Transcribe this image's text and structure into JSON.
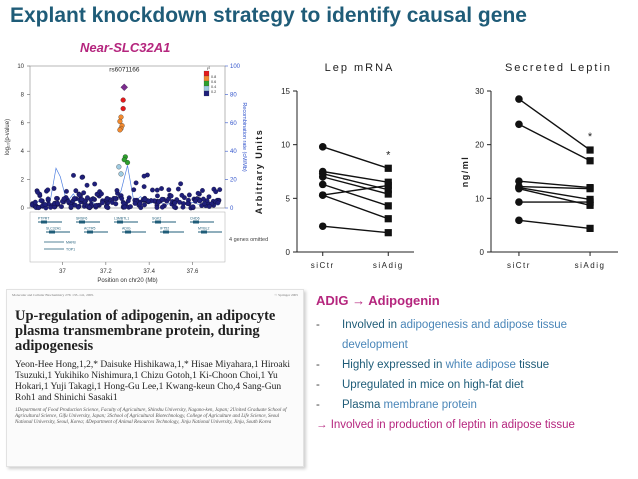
{
  "slide": {
    "title": "Explant knockdown strategy to identify causal gene",
    "subtitle": "Near-SLC32A1"
  },
  "chart_data": [
    {
      "type": "scatter",
      "ylabel": "log₁₀(p-value)",
      "y2label": "Recombination rate (cM/Mb)",
      "xlabel": "Position on chr20 (Mb)",
      "xlim": [
        36.85,
        37.75
      ],
      "ylim": [
        0,
        10
      ],
      "y2lim": [
        0,
        100
      ],
      "x_ticks": [
        "37",
        "37.2",
        "37.4",
        "37.6"
      ],
      "y_ticks": [
        "0",
        "2",
        "4",
        "6",
        "8",
        "10"
      ],
      "y2_ticks": [
        "0",
        "20",
        "40",
        "60",
        "80",
        "100"
      ],
      "lead_snp": {
        "label": "rs6071166",
        "x": 37.285,
        "y": 8.5,
        "color": "#7b2d8e"
      },
      "legend": {
        "title": "r²",
        "entries": [
          "0.8",
          "0.6",
          "0.4",
          "0.2"
        ],
        "colors": [
          "#e41a1c",
          "#f28a30",
          "#2ca02c",
          "#9ecae1",
          "#1f1f7a"
        ]
      },
      "highlight_snps": [
        {
          "x": 37.28,
          "y": 7.6,
          "color": "#e41a1c"
        },
        {
          "x": 37.28,
          "y": 7.0,
          "color": "#e41a1c"
        },
        {
          "x": 37.27,
          "y": 6.4,
          "color": "#f28a30"
        },
        {
          "x": 37.265,
          "y": 6.1,
          "color": "#f28a30"
        },
        {
          "x": 37.275,
          "y": 5.8,
          "color": "#f28a30"
        },
        {
          "x": 37.27,
          "y": 5.6,
          "color": "#f28a30"
        },
        {
          "x": 37.265,
          "y": 5.5,
          "color": "#f28a30"
        },
        {
          "x": 37.29,
          "y": 3.6,
          "color": "#2ca02c"
        },
        {
          "x": 37.3,
          "y": 3.2,
          "color": "#2ca02c"
        },
        {
          "x": 37.285,
          "y": 3.4,
          "color": "#2ca02c"
        },
        {
          "x": 37.26,
          "y": 2.9,
          "color": "#9ecae1"
        },
        {
          "x": 37.27,
          "y": 2.4,
          "color": "#9ecae1"
        }
      ],
      "recombination": [
        [
          36.86,
          3
        ],
        [
          36.9,
          5
        ],
        [
          36.94,
          2
        ],
        [
          36.97,
          28
        ],
        [
          36.99,
          22
        ],
        [
          37.02,
          4
        ],
        [
          37.05,
          10
        ],
        [
          37.08,
          3
        ],
        [
          37.12,
          6
        ],
        [
          37.16,
          2
        ],
        [
          37.2,
          5
        ],
        [
          37.24,
          3
        ],
        [
          37.27,
          12
        ],
        [
          37.3,
          30
        ],
        [
          37.33,
          4
        ],
        [
          37.36,
          8
        ],
        [
          37.4,
          3
        ],
        [
          37.44,
          5
        ],
        [
          37.48,
          2
        ],
        [
          37.52,
          6
        ],
        [
          37.56,
          3
        ],
        [
          37.6,
          4
        ],
        [
          37.64,
          2
        ],
        [
          37.68,
          3
        ],
        [
          37.72,
          2
        ]
      ],
      "genes_top": [
        "PTPRT",
        "SRSF6",
        "L3MBTL1",
        "SGK2",
        "CHD6"
      ],
      "genes_bottom": [
        "SLC32A1",
        "ACTR5",
        "ADIG",
        "IFT52",
        "MYBL2"
      ],
      "genes_extra": [
        "MAFB",
        "TOP1"
      ],
      "genes_note": "4 genes omitted"
    },
    {
      "type": "line",
      "title": "Lep mRNA",
      "ylabel": "Arbitrary Units",
      "categories": [
        "siCtr",
        "siAdig"
      ],
      "ylim": [
        0,
        15
      ],
      "y_ticks": [
        "0",
        "5",
        "10",
        "15"
      ],
      "significance": "*",
      "pairs": [
        [
          9.8,
          7.8
        ],
        [
          7.5,
          6.5
        ],
        [
          7.3,
          5.8
        ],
        [
          7.0,
          5.4
        ],
        [
          6.3,
          4.3
        ],
        [
          5.3,
          3.1
        ],
        [
          5.3,
          6.2
        ],
        [
          2.4,
          1.8
        ]
      ]
    },
    {
      "type": "line",
      "title": "Secreted Leptin",
      "ylabel": "ng/ml",
      "categories": [
        "siCtr",
        "siAdig"
      ],
      "ylim": [
        0,
        30
      ],
      "y_ticks": [
        "0",
        "10",
        "20",
        "30"
      ],
      "significance": "*",
      "pairs": [
        [
          28.5,
          19
        ],
        [
          23.8,
          17
        ],
        [
          13.2,
          12
        ],
        [
          12.2,
          11.8
        ],
        [
          12,
          9.8
        ],
        [
          11.8,
          8.7
        ],
        [
          9.3,
          9.3
        ],
        [
          5.9,
          4.4
        ]
      ]
    }
  ],
  "paper": {
    "journal": "Molecular and Cellular Biochemistry 276: 133–141, 2005.",
    "copyright": "© Springer 2005",
    "title": "Up-regulation of adipogenin, an adipocyte plasma transmembrane protein, during adipogenesis",
    "authors": "Yeon-Hee Hong,1,2,* Daisuke Hishikawa,1,* Hisae Miyahara,1 Hiroaki Tsuzuki,1 Yukihiko Nishimura,1 Chizu Gotoh,1 Ki-Choon Choi,1 Yu Hokari,1 Yuji Takagi,1 Hong-Gu Lee,1 Kwang-keun Cho,4 Sang-Gun Roh1 and Shinichi Sasaki1",
    "affiliations": "1Department of Food Production Science, Faculty of Agriculture, Shinshu University, Nagano-ken, Japan; 2United Graduate School of Agricultural Science, Gifu University, Japan; 3School of Agricultural Biotechnology, College of Agriculture and Life Science, Seoul National University, Seoul, Korea; 4Department of Animal Resources Technology, Jinju National University, Jinju, South Korea"
  },
  "adig": {
    "title": "ADIG → Adipogenin",
    "items": [
      {
        "dash": "-",
        "pre": "Involved in ",
        "hl": "adipogenesis and adipose tissue",
        "post": ""
      },
      {
        "dash": "",
        "pre": "",
        "hl": "development",
        "post": ""
      },
      {
        "dash": "-",
        "pre": "Highly expressed in ",
        "hl": "white adipose",
        "post": " tissue"
      },
      {
        "dash": "-",
        "pre": "Upregulated in mice on high-fat diet",
        "hl": "",
        "post": ""
      },
      {
        "dash": "-",
        "pre": "Plasma ",
        "hl": "membrane protein",
        "post": ""
      }
    ],
    "final": "→ Involved in production of leptin in adipose tissue"
  }
}
